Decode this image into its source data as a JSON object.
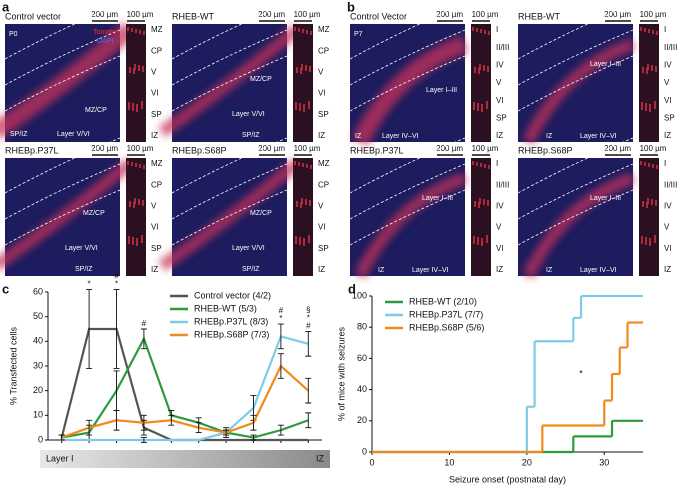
{
  "figure": {
    "panels": [
      {
        "letter": "a",
        "images": [
          {
            "title": "Control vector",
            "scale_bars": [
              "200 µm",
              "100 µm"
            ],
            "labels": [
              "P0",
              "Tomato",
              "DAPI",
              "MZ/CP",
              "SP/IZ",
              "Layer V/VI"
            ],
            "layers": [
              "MZ",
              "CP",
              "V",
              "VI",
              "SP",
              "IZ"
            ]
          },
          {
            "title": "RHEB-WT",
            "scale_bars": [
              "200 µm",
              "100 µm"
            ],
            "labels": [
              "MZ/CP",
              "Layer V/VI",
              "SP/IZ"
            ],
            "layers": [
              "MZ",
              "CP",
              "V",
              "VI",
              "SP",
              "IZ"
            ]
          },
          {
            "title": "RHEBp.P37L",
            "scale_bars": [
              "200 µm",
              "100 µm"
            ],
            "labels": [
              "MZ/CP",
              "Layer V/VI",
              "SP/IZ"
            ],
            "layers": [
              "MZ",
              "CP",
              "V",
              "VI",
              "SP",
              "IZ"
            ]
          },
          {
            "title": "RHEBp.S68P",
            "scale_bars": [
              "200 µm",
              "100 µm"
            ],
            "labels": [
              "MZ/CP",
              "Layer V/VI",
              "SP/IZ"
            ],
            "layers": [
              "MZ",
              "CP",
              "V",
              "VI",
              "SP",
              "IZ"
            ]
          }
        ]
      },
      {
        "letter": "b",
        "images": [
          {
            "title": "Control Vector",
            "scale_bars": [
              "200 µm",
              "100 µm"
            ],
            "labels": [
              "P7",
              "Layer I–III",
              "IZ",
              "Layer IV–VI"
            ],
            "layers": [
              "I",
              "II/III",
              "IV",
              "V",
              "VI",
              "SP",
              "IZ"
            ]
          },
          {
            "title": "RHEB-WT",
            "scale_bars": [
              "200 µm",
              "100 µm"
            ],
            "labels": [
              "Layer I–III",
              "IZ",
              "Layer IV–VI"
            ],
            "layers": [
              "I",
              "II/III",
              "IV",
              "V",
              "VI",
              "SP",
              "IZ"
            ]
          },
          {
            "title": "RHEBp.P37L",
            "scale_bars": [
              "200 µm",
              "100 µm"
            ],
            "labels": [
              "Layer I–III",
              "IZ",
              "Layer IV–VI"
            ],
            "layers": [
              "I",
              "II/III",
              "IV",
              "V",
              "VI",
              "IZ"
            ]
          },
          {
            "title": "RHEBp.S68P",
            "scale_bars": [
              "200 µm",
              "100 µm"
            ],
            "labels": [
              "Layer I–III",
              "IZ",
              "Layer IV–VI"
            ],
            "layers": [
              "I",
              "II/III",
              "IV",
              "V",
              "VI",
              "IZ"
            ]
          }
        ]
      }
    ]
  },
  "chart_data": [
    {
      "type": "line",
      "letter": "c",
      "ylabel": "% Transfected cells",
      "categories": [
        null,
        null,
        null,
        null,
        null,
        null,
        null,
        null,
        null,
        null
      ],
      "x_range_labels": [
        "Layer I",
        "IZ"
      ],
      "ylim": [
        0,
        60
      ],
      "yticks": [
        0,
        10,
        20,
        30,
        40,
        50,
        60
      ],
      "legend": "upper right",
      "series": [
        {
          "name": "Control vector (4/2)",
          "color": "#555555",
          "values": [
            1,
            45,
            45,
            5,
            0,
            0,
            0,
            0,
            0,
            0
          ],
          "errors": [
            1,
            16,
            16,
            3,
            0,
            0,
            0,
            0,
            0,
            0
          ]
        },
        {
          "name": "RHEB-WT (5/3)",
          "color": "#2e9a3e",
          "values": [
            1,
            3,
            20,
            41,
            10,
            7,
            3,
            1,
            4,
            8
          ],
          "errors": [
            1,
            3,
            8,
            4,
            2,
            2,
            1,
            1,
            2,
            3
          ]
        },
        {
          "name": "RHEBp.P37L (8/3)",
          "color": "#7fcbe6",
          "values": [
            0,
            0,
            0,
            0,
            0,
            0,
            3,
            13,
            42,
            39
          ],
          "errors": [
            0,
            0,
            0,
            1,
            0,
            0,
            2,
            5,
            5,
            5
          ]
        },
        {
          "name": "RHEBp.S68P (7/3)",
          "color": "#f08a1c",
          "values": [
            1,
            5,
            8,
            7,
            8,
            5,
            3,
            7,
            30,
            20
          ],
          "errors": [
            1,
            3,
            4,
            3,
            2,
            2,
            1,
            3,
            5,
            5
          ]
        }
      ],
      "significance": [
        [],
        [
          "*"
        ],
        [
          "#",
          "*"
        ],
        [
          "#"
        ],
        [],
        [],
        [],
        [],
        [
          "#",
          "*"
        ],
        [
          "§",
          "*",
          "#"
        ]
      ]
    },
    {
      "type": "step",
      "letter": "d",
      "xlabel": "Seizure onset (postnatal day)",
      "ylabel": "% of mice with seizures",
      "xlim": [
        0,
        35
      ],
      "xticks": [
        0,
        10,
        20,
        30
      ],
      "ylim": [
        0,
        100
      ],
      "yticks": [
        0,
        20,
        40,
        60,
        80,
        100
      ],
      "legend": "upper left",
      "series": [
        {
          "name": "RHEB-WT (2/10)",
          "color": "#2e9a3e",
          "x": [
            0,
            26,
            31,
            35
          ],
          "values": [
            0,
            10,
            20,
            20
          ]
        },
        {
          "name": "RHEBp.P37L (7/7)",
          "color": "#7fcbe6",
          "x": [
            0,
            20,
            21,
            26,
            27,
            35
          ],
          "values": [
            0,
            29,
            71,
            86,
            100,
            100
          ]
        },
        {
          "name": "RHEBp.S68P (5/6)",
          "color": "#f08a1c",
          "x": [
            0,
            22,
            30,
            31,
            32,
            33,
            35
          ],
          "values": [
            0,
            17,
            33,
            50,
            67,
            83,
            83
          ]
        }
      ],
      "annotation": {
        "text": "*",
        "x": 27,
        "y": 50
      }
    }
  ]
}
